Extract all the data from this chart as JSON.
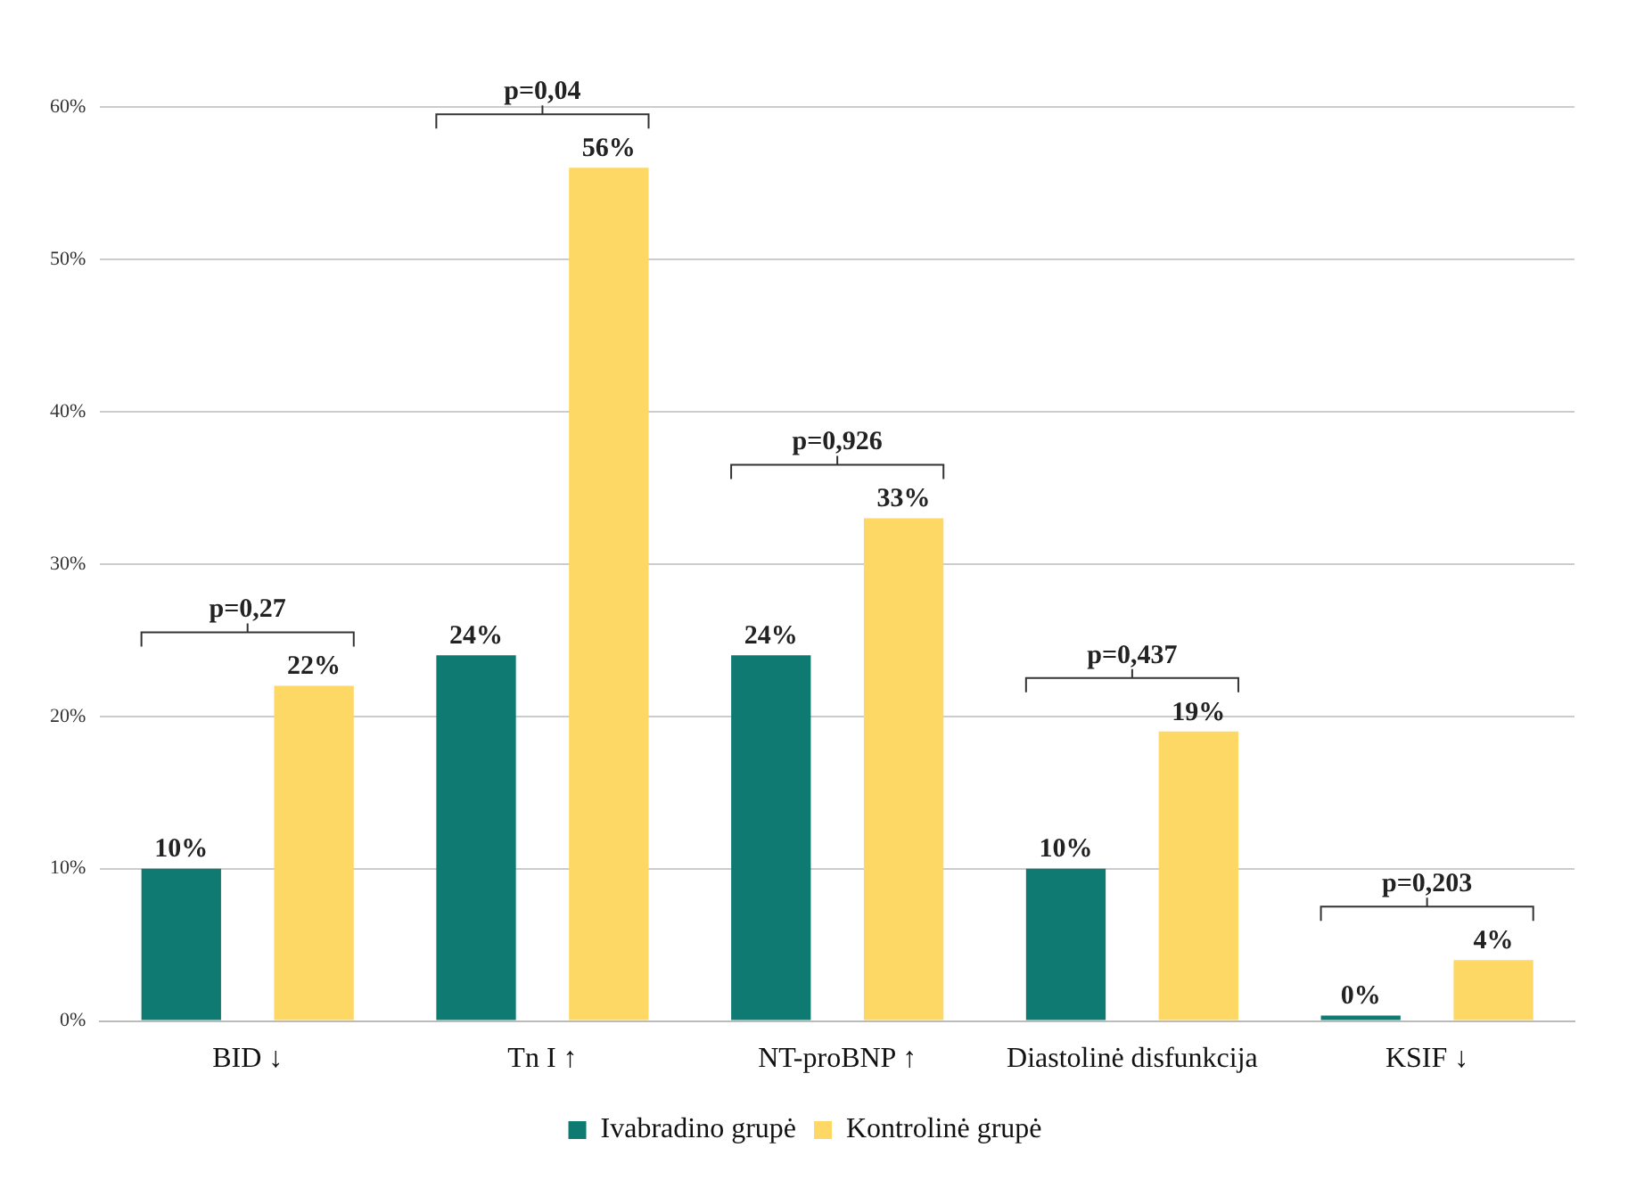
{
  "chart_data": {
    "type": "bar",
    "categories": [
      "BID ↓",
      "Tn I ↑",
      "NT-proBNP ↑",
      "Diastolinė disfunkcija",
      "KSIF ↓"
    ],
    "series": [
      {
        "name": "Ivabradino grupė",
        "color": "#0f7a72",
        "values": [
          10,
          24,
          24,
          10,
          0
        ],
        "value_labels": [
          "10%",
          "24%",
          "24%",
          "10%",
          "0%"
        ]
      },
      {
        "name": "Kontrolinė grupė",
        "color": "#fdd865",
        "values": [
          22,
          56,
          33,
          19,
          4
        ],
        "value_labels": [
          "22%",
          "56%",
          "33%",
          "19%",
          "4%"
        ]
      }
    ],
    "ylim": [
      0,
      60
    ],
    "yticks": [
      {
        "value": 0,
        "label": "0%"
      },
      {
        "value": 10,
        "label": "10%"
      },
      {
        "value": 20,
        "label": "20%"
      },
      {
        "value": 30,
        "label": "30%"
      },
      {
        "value": 40,
        "label": "40%"
      },
      {
        "value": 50,
        "label": "50%"
      },
      {
        "value": 60,
        "label": "60%"
      }
    ],
    "grid": "y",
    "legend": "bottom",
    "annotations": [
      "p=0,27",
      "p=0,04",
      "p=0,926",
      "p=0,437",
      "p=0,203"
    ]
  }
}
